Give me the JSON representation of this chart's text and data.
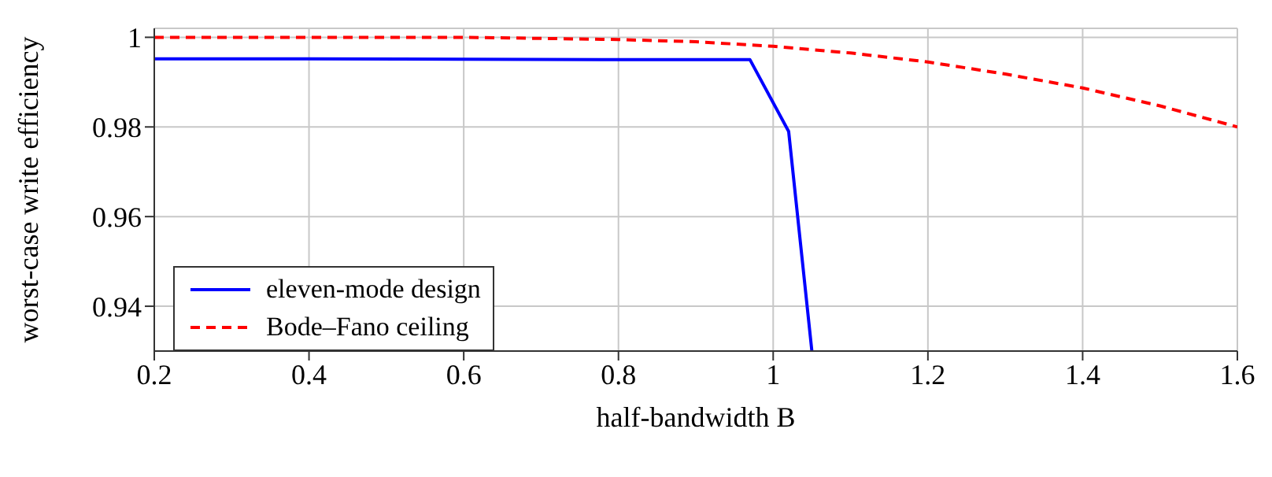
{
  "chart_data": {
    "type": "line",
    "xlabel": "half-bandwidth B",
    "ylabel": "worst-case write efficiency",
    "xlim": [
      0.2,
      1.6
    ],
    "xticks": [
      0.2,
      0.4,
      0.6,
      0.8,
      1,
      1.2,
      1.4,
      1.6
    ],
    "ylim": [
      0.93,
      1.002
    ],
    "yticks": [
      0.94,
      0.96,
      0.98,
      1
    ],
    "grid": true,
    "legend": "bottom left",
    "marker": "none",
    "series": [
      {
        "name": "eleven-mode design",
        "color": "#0000ff",
        "line_style": "solid",
        "x": [
          0.2,
          0.4,
          0.6,
          0.8,
          0.97,
          1.02,
          1.05
        ],
        "values": [
          0.9952,
          0.9952,
          0.9951,
          0.995,
          0.995,
          0.979,
          0.93
        ]
      },
      {
        "name": "Bode–Fano ceiling",
        "color": "#ff0000",
        "line_style": "dashed",
        "x": [
          0.2,
          0.4,
          0.6,
          0.8,
          0.9,
          1,
          1.1,
          1.2,
          1.3,
          1.4,
          1.5,
          1.6
        ],
        "values": [
          1,
          1,
          1,
          0.9995,
          0.999,
          0.998,
          0.9965,
          0.9945,
          0.9918,
          0.9887,
          0.9847,
          0.98
        ]
      }
    ]
  }
}
